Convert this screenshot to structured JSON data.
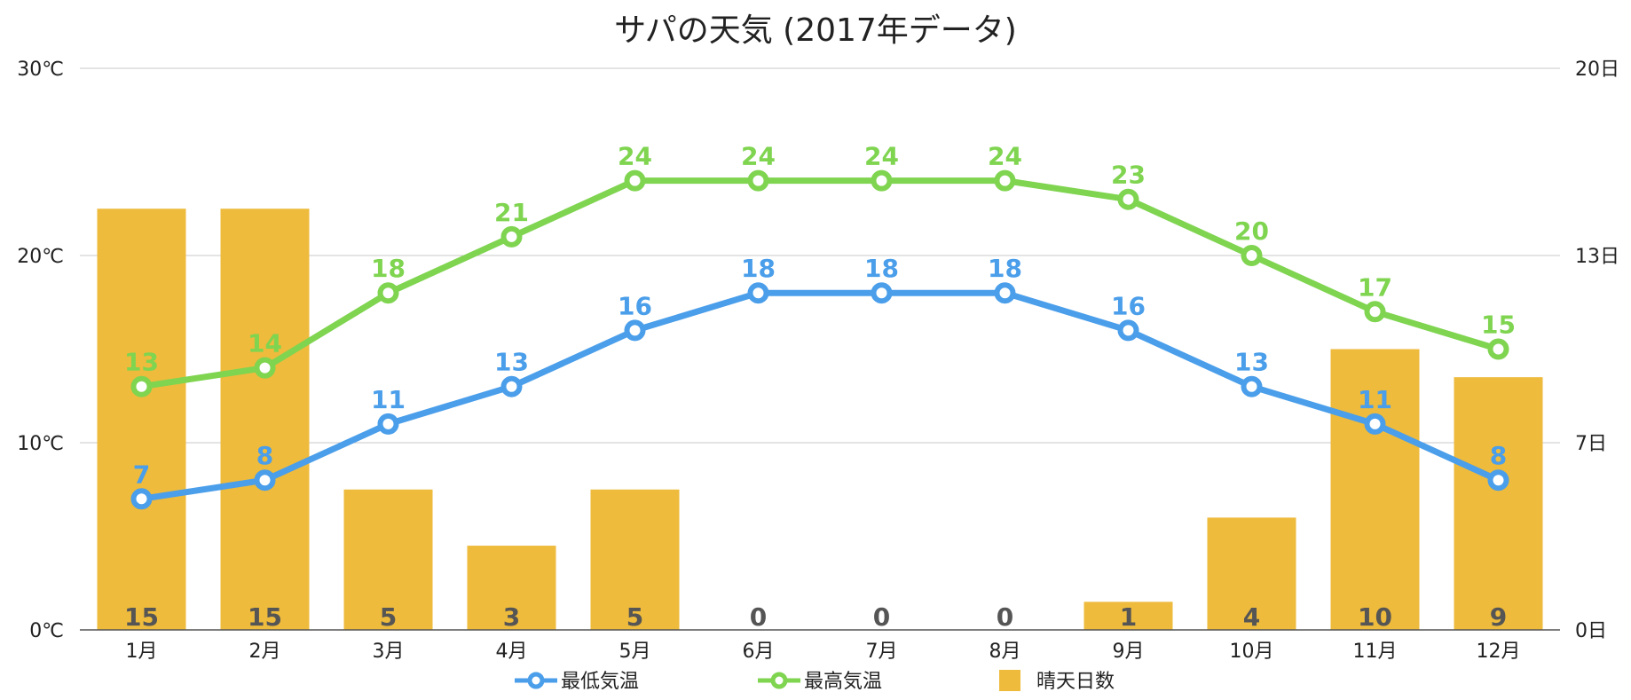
{
  "chart_data": {
    "type": "bar+line",
    "title": "サパの天気 (2017年データ)",
    "categories": [
      "1月",
      "2月",
      "3月",
      "4月",
      "5月",
      "6月",
      "7月",
      "8月",
      "9月",
      "10月",
      "11月",
      "12月"
    ],
    "left_axis": {
      "unit": "℃",
      "ticks": [
        "0℃",
        "10℃",
        "20℃",
        "30℃"
      ],
      "ylim": [
        0,
        30
      ]
    },
    "right_axis": {
      "unit": "日",
      "ticks": [
        "0日",
        "7日",
        "13日",
        "20日"
      ],
      "ylim": [
        0,
        20
      ]
    },
    "series": [
      {
        "name": "最低気温",
        "type": "line",
        "axis": "left",
        "color": "#4a9eea",
        "values": [
          7,
          8,
          11,
          13,
          16,
          18,
          18,
          18,
          16,
          13,
          11,
          8
        ]
      },
      {
        "name": "最高気温",
        "type": "line",
        "axis": "left",
        "color": "#7fd450",
        "values": [
          13,
          14,
          18,
          21,
          24,
          24,
          24,
          24,
          23,
          20,
          17,
          15
        ]
      },
      {
        "name": "晴天日数",
        "type": "bar",
        "axis": "right",
        "color": "#eebb3d",
        "values": [
          15,
          15,
          5,
          3,
          5,
          0,
          0,
          0,
          1,
          4,
          10,
          9
        ]
      }
    ],
    "legend": "bottom-center",
    "grid": true
  }
}
